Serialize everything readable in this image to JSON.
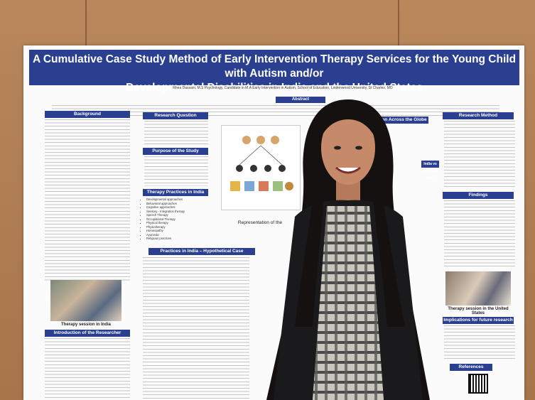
{
  "poster": {
    "title_line1": "A Cumulative Case Study Method of Early Intervention Therapy Services for the Young Child with Autism and/or",
    "title_line2": "Developmental Disabilities in India and the United States",
    "author": "Rhea Dassani, M.S Psychology, Candidate in M.A Early Intervention in Autism, School of Education, Lindenwood University, St Charles, MO",
    "abstract_label": "Abstract",
    "sections": {
      "background": "Background",
      "research_question": "Research Question",
      "purpose": "Purpose of the Study",
      "therapy_practices": "Therapy Practices in India",
      "practices_case": "Practices in India – Hypothetical Case",
      "intro_researcher": "Introduction of the Researcher",
      "early_intervention": "Early Intervention Across the Globe",
      "india_us": "India vs the United States",
      "research_method": "Research Method",
      "findings": "Findings",
      "implications": "Implications for future research",
      "references": "References"
    },
    "therapy_list": [
      "Developmental approaches",
      "Behavioral approaches",
      "Cognitive approaches",
      "Sensory - Integration therapy",
      "Speech Therapy",
      "Occupational Therapy",
      "Physical therapy",
      "Physiotherapy",
      "Homeopathy",
      "Ayurveda",
      "Religious practices"
    ],
    "captions": {
      "photo_left": "Therapy session in India",
      "photo_right": "Therapy session in the United States",
      "representation": "Representation of the"
    }
  },
  "colors": {
    "banner": "#2a3f8f",
    "wall": "#b07a4f",
    "poster": "#fbfbfb"
  }
}
